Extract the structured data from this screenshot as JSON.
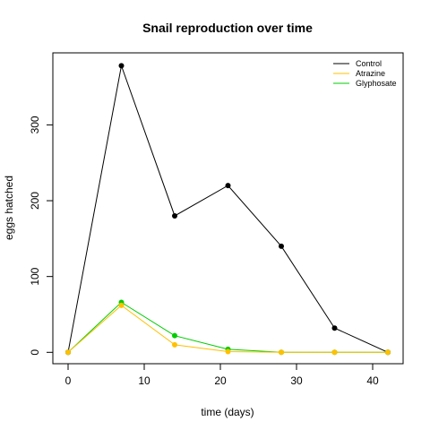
{
  "chart_data": {
    "type": "line",
    "title": "Snail reproduction over time",
    "xlabel": "time (days)",
    "ylabel": "eggs hatched",
    "x": [
      0,
      7,
      14,
      21,
      28,
      35,
      42
    ],
    "xlim": [
      -2,
      44
    ],
    "ylim": [
      -15,
      395
    ],
    "x_ticks": [
      0,
      10,
      20,
      30,
      40
    ],
    "y_ticks": [
      0,
      100,
      200,
      300
    ],
    "grid": false,
    "legend_position": "top-right",
    "series": [
      {
        "name": "Control",
        "color": "#000000",
        "values": [
          0,
          378,
          180,
          220,
          140,
          32,
          0
        ]
      },
      {
        "name": "Atrazine",
        "color": "#FFC000",
        "values": [
          0,
          62,
          10,
          1,
          0,
          0,
          0
        ]
      },
      {
        "name": "Glyphosate",
        "color": "#00CC00",
        "values": [
          0,
          66,
          22,
          4,
          0,
          0,
          0
        ]
      }
    ],
    "draw_order": [
      0,
      2,
      1
    ]
  }
}
